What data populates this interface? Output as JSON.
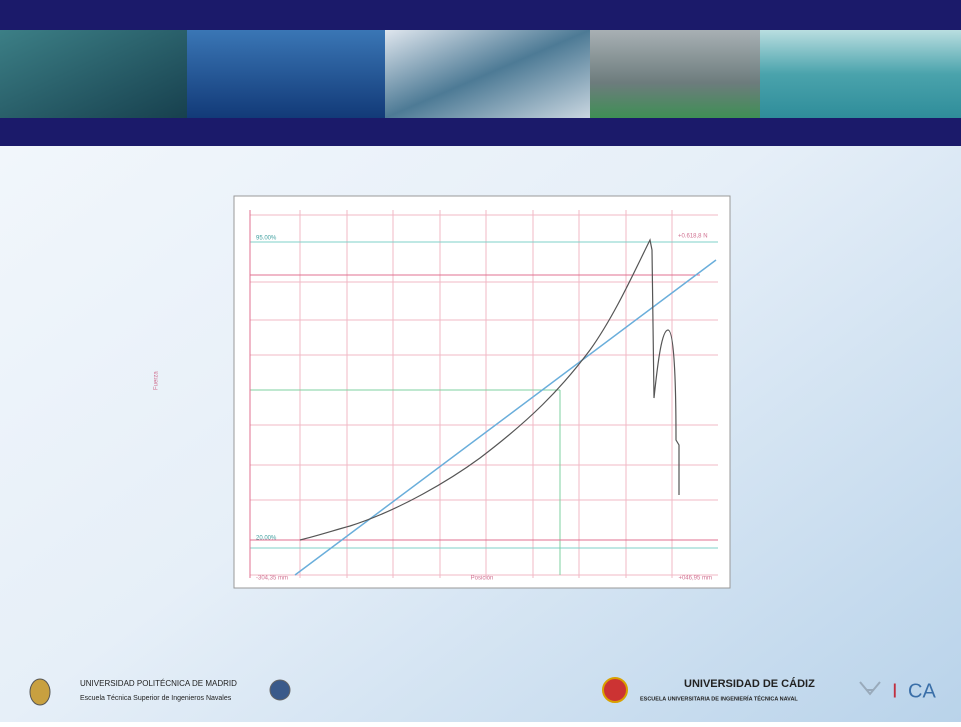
{
  "chart": {
    "y_axis_label": "Fuerza",
    "x_axis_label": "Posición",
    "x_min_label": "-304,35 mm",
    "x_max_label": "+046,95 mm",
    "upper_pct_label": "95.00%",
    "lower_pct_label": "20.00%",
    "peak_label": "+0.618,8 N"
  },
  "footer": {
    "left_title": "UNIVERSIDAD POLITÉCNICA DE MADRID",
    "left_subtitle": "Escuela Técnica Superior de Ingenieros Navales",
    "right_title": "UNIVERSIDAD DE CÁDIZ",
    "right_subtitle": "ESCUELA UNIVERSITARIA DE INGENIERÍA TÉCNICA NAVAL",
    "ica_i": "I",
    "ica_ca": "CA"
  }
}
